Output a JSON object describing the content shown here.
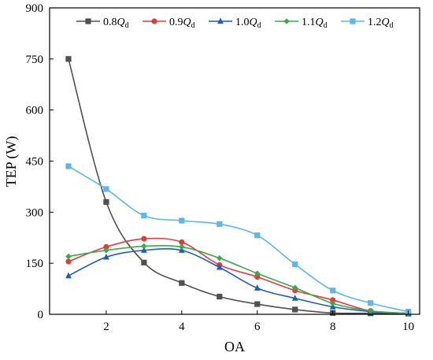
{
  "chart_data": {
    "type": "line",
    "xlabel": "OA",
    "ylabel": "TEP (W)",
    "xlim": [
      0.5,
      10.3
    ],
    "ylim": [
      0,
      900
    ],
    "x_ticks": [
      2,
      4,
      6,
      8,
      10
    ],
    "y_ticks": [
      0,
      150,
      300,
      450,
      600,
      750,
      900
    ],
    "x": [
      1,
      2,
      3,
      4,
      5,
      6,
      7,
      8,
      9,
      10
    ],
    "grid": false,
    "legend_position": "top",
    "series": [
      {
        "name": "0.8",
        "sub": "Q",
        "subscript": "d",
        "color": "#505050",
        "marker": "square",
        "values": [
          750,
          330,
          152,
          92,
          52,
          30,
          14,
          4,
          3,
          2
        ]
      },
      {
        "name": "0.9",
        "sub": "Q",
        "subscript": "d",
        "color": "#e03c3c",
        "marker": "circle",
        "values": [
          155,
          198,
          222,
          212,
          145,
          110,
          70,
          42,
          10,
          3
        ]
      },
      {
        "name": "1.0",
        "sub": "Q",
        "subscript": "d",
        "color": "#1f5bc4",
        "marker": "triangle",
        "values": [
          113,
          168,
          188,
          188,
          138,
          77,
          47,
          22,
          8,
          3
        ]
      },
      {
        "name": "1.1",
        "sub": "Q",
        "subscript": "d",
        "color": "#3aaa4c",
        "marker": "diamond",
        "values": [
          170,
          188,
          200,
          198,
          165,
          120,
          78,
          32,
          10,
          3
        ]
      },
      {
        "name": "1.2",
        "sub": "Q",
        "subscript": "d",
        "color": "#5ab8ea",
        "marker": "square",
        "values": [
          435,
          368,
          290,
          275,
          265,
          232,
          147,
          70,
          33,
          8
        ]
      }
    ]
  }
}
